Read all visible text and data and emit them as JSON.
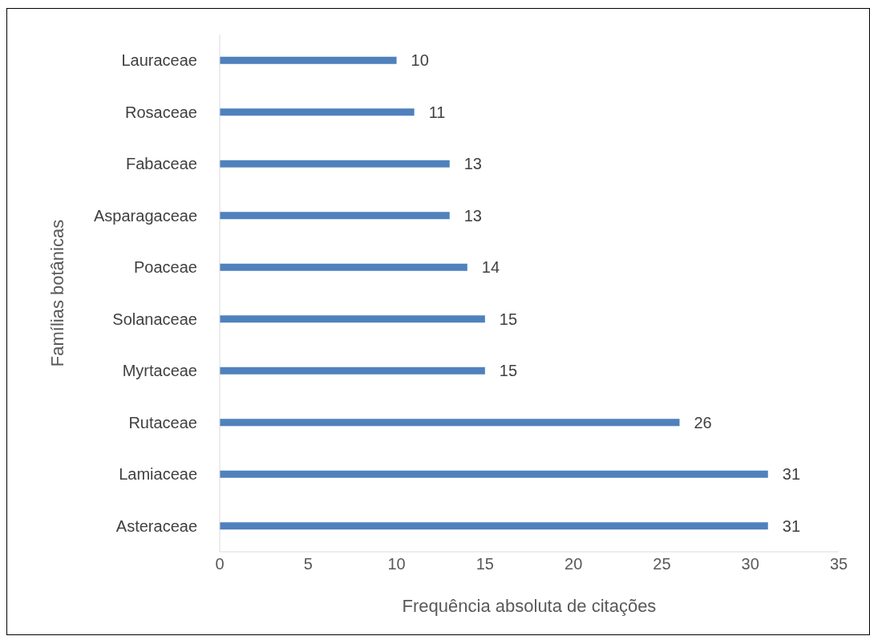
{
  "chart_data": {
    "type": "bar",
    "orientation": "horizontal",
    "categories": [
      "Lauraceae",
      "Rosaceae",
      "Fabaceae",
      "Asparagaceae",
      "Poaceae",
      "Solanaceae",
      "Myrtaceae",
      "Rutaceae",
      "Lamiaceae",
      "Asteraceae"
    ],
    "values": [
      10,
      11,
      13,
      13,
      14,
      15,
      15,
      26,
      31,
      31
    ],
    "color": "#4f81bd",
    "xlim": [
      0,
      35
    ],
    "xticks": [
      0,
      5,
      10,
      15,
      20,
      25,
      30,
      35
    ],
    "xlabel": "Frequência absoluta de citações",
    "ylabel": "Famílias botânicas",
    "data_labels": true
  }
}
